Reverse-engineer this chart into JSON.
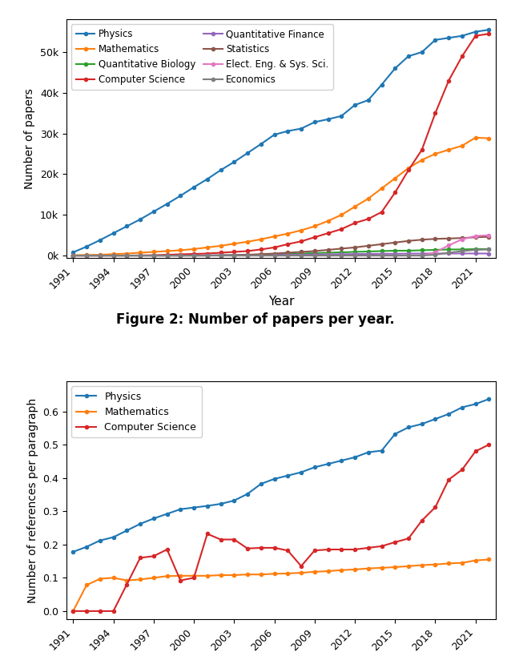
{
  "fig1": {
    "xlabel": "Year",
    "ylabel": "Number of papers",
    "series": {
      "Physics": {
        "color": "#1f77b4",
        "years": [
          1991,
          1992,
          1993,
          1994,
          1995,
          1996,
          1997,
          1998,
          1999,
          2000,
          2001,
          2002,
          2003,
          2004,
          2005,
          2006,
          2007,
          2008,
          2009,
          2010,
          2011,
          2012,
          2013,
          2014,
          2015,
          2016,
          2017,
          2018,
          2019,
          2020,
          2021,
          2022
        ],
        "values": [
          800,
          2200,
          3800,
          5500,
          7200,
          8900,
          10800,
          12700,
          14700,
          16800,
          18800,
          21000,
          23000,
          25200,
          27400,
          29700,
          30600,
          31200,
          32800,
          33500,
          34300,
          37000,
          38200,
          42000,
          46000,
          49000,
          50000,
          53000,
          53500,
          54000,
          55000,
          55500
        ]
      },
      "Mathematics": {
        "color": "#ff7f0e",
        "years": [
          1991,
          1992,
          1993,
          1994,
          1995,
          1996,
          1997,
          1998,
          1999,
          2000,
          2001,
          2002,
          2003,
          2004,
          2005,
          2006,
          2007,
          2008,
          2009,
          2010,
          2011,
          2012,
          2013,
          2014,
          2015,
          2016,
          2017,
          2018,
          2019,
          2020,
          2021,
          2022
        ],
        "values": [
          100,
          150,
          200,
          350,
          500,
          700,
          900,
          1100,
          1300,
          1600,
          2000,
          2400,
          2900,
          3400,
          4000,
          4700,
          5400,
          6200,
          7200,
          8500,
          10000,
          12000,
          14000,
          16500,
          19000,
          21500,
          23500,
          25000,
          26000,
          27000,
          29000,
          28800
        ]
      },
      "Quantitative Biology": {
        "color": "#2ca02c",
        "years": [
          1991,
          1992,
          1993,
          1994,
          1995,
          1996,
          1997,
          1998,
          1999,
          2000,
          2001,
          2002,
          2003,
          2004,
          2005,
          2006,
          2007,
          2008,
          2009,
          2010,
          2011,
          2012,
          2013,
          2014,
          2015,
          2016,
          2017,
          2018,
          2019,
          2020,
          2021,
          2022
        ],
        "values": [
          0,
          0,
          0,
          0,
          0,
          0,
          0,
          0,
          0,
          0,
          0,
          50,
          100,
          150,
          200,
          300,
          400,
          500,
          600,
          700,
          800,
          900,
          1000,
          1100,
          1200,
          1200,
          1300,
          1400,
          1500,
          1500,
          1600,
          1600
        ]
      },
      "Computer Science": {
        "color": "#d62728",
        "years": [
          1991,
          1992,
          1993,
          1994,
          1995,
          1996,
          1997,
          1998,
          1999,
          2000,
          2001,
          2002,
          2003,
          2004,
          2005,
          2006,
          2007,
          2008,
          2009,
          2010,
          2011,
          2012,
          2013,
          2014,
          2015,
          2016,
          2017,
          2018,
          2019,
          2020,
          2021,
          2022
        ],
        "values": [
          0,
          0,
          0,
          0,
          0,
          50,
          100,
          200,
          300,
          400,
          500,
          700,
          900,
          1100,
          1500,
          2000,
          2800,
          3500,
          4500,
          5500,
          6500,
          8000,
          9000,
          10700,
          15500,
          21000,
          26000,
          35000,
          43000,
          49000,
          54000,
          54500
        ]
      },
      "Quantitative Finance": {
        "color": "#9467bd",
        "years": [
          1991,
          1992,
          1993,
          1994,
          1995,
          1996,
          1997,
          1998,
          1999,
          2000,
          2001,
          2002,
          2003,
          2004,
          2005,
          2006,
          2007,
          2008,
          2009,
          2010,
          2011,
          2012,
          2013,
          2014,
          2015,
          2016,
          2017,
          2018,
          2019,
          2020,
          2021,
          2022
        ],
        "values": [
          0,
          0,
          0,
          0,
          0,
          0,
          0,
          0,
          0,
          20,
          50,
          80,
          100,
          130,
          160,
          180,
          200,
          230,
          260,
          300,
          340,
          370,
          400,
          430,
          450,
          480,
          500,
          510,
          510,
          510,
          510,
          500
        ]
      },
      "Statistics": {
        "color": "#8c564b",
        "years": [
          1991,
          1992,
          1993,
          1994,
          1995,
          1996,
          1997,
          1998,
          1999,
          2000,
          2001,
          2002,
          2003,
          2004,
          2005,
          2006,
          2007,
          2008,
          2009,
          2010,
          2011,
          2012,
          2013,
          2014,
          2015,
          2016,
          2017,
          2018,
          2019,
          2020,
          2021,
          2022
        ],
        "values": [
          0,
          0,
          0,
          0,
          0,
          0,
          0,
          0,
          0,
          0,
          0,
          50,
          100,
          200,
          350,
          500,
          700,
          900,
          1100,
          1400,
          1700,
          2000,
          2400,
          2800,
          3200,
          3600,
          3900,
          4100,
          4200,
          4300,
          4500,
          4600
        ]
      },
      "Elect. Eng. & Sys. Sci.": {
        "color": "#e377c2",
        "years": [
          1991,
          1992,
          1993,
          1994,
          1995,
          1996,
          1997,
          1998,
          1999,
          2000,
          2001,
          2002,
          2003,
          2004,
          2005,
          2006,
          2007,
          2008,
          2009,
          2010,
          2011,
          2012,
          2013,
          2014,
          2015,
          2016,
          2017,
          2018,
          2019,
          2020,
          2021,
          2022
        ],
        "values": [
          0,
          0,
          0,
          0,
          0,
          0,
          0,
          0,
          0,
          0,
          0,
          0,
          0,
          0,
          0,
          0,
          0,
          0,
          0,
          0,
          0,
          0,
          0,
          0,
          0,
          0,
          0,
          800,
          2500,
          4000,
          4800,
          5000
        ]
      },
      "Economics": {
        "color": "#7f7f7f",
        "years": [
          1991,
          1992,
          1993,
          1994,
          1995,
          1996,
          1997,
          1998,
          1999,
          2000,
          2001,
          2002,
          2003,
          2004,
          2005,
          2006,
          2007,
          2008,
          2009,
          2010,
          2011,
          2012,
          2013,
          2014,
          2015,
          2016,
          2017,
          2018,
          2019,
          2020,
          2021,
          2022
        ],
        "values": [
          0,
          0,
          0,
          0,
          0,
          0,
          0,
          0,
          0,
          0,
          0,
          0,
          0,
          0,
          0,
          0,
          0,
          0,
          0,
          0,
          0,
          0,
          0,
          0,
          0,
          0,
          0,
          200,
          700,
          1100,
          1400,
          1500
        ]
      }
    },
    "legend_col1": [
      "Physics",
      "Mathematics",
      "Quantitative Biology",
      "Computer Science"
    ],
    "legend_col2": [
      "Quantitative Finance",
      "Statistics",
      "Elect. Eng. & Sys. Sci.",
      "Economics"
    ]
  },
  "caption": "Figure 2: Number of papers per year.",
  "fig2": {
    "xlabel": "Year",
    "ylabel": "Number of references per paragraph",
    "series": {
      "Physics": {
        "color": "#1f77b4",
        "years": [
          1991,
          1992,
          1993,
          1994,
          1995,
          1996,
          1997,
          1998,
          1999,
          2000,
          2001,
          2002,
          2003,
          2004,
          2005,
          2006,
          2007,
          2008,
          2009,
          2010,
          2011,
          2012,
          2013,
          2014,
          2015,
          2016,
          2017,
          2018,
          2019,
          2020,
          2021,
          2022
        ],
        "values": [
          0.178,
          0.193,
          0.212,
          0.222,
          0.242,
          0.262,
          0.278,
          0.292,
          0.306,
          0.311,
          0.316,
          0.322,
          0.332,
          0.352,
          0.382,
          0.397,
          0.407,
          0.417,
          0.432,
          0.442,
          0.452,
          0.462,
          0.477,
          0.482,
          0.532,
          0.552,
          0.562,
          0.577,
          0.592,
          0.612,
          0.622,
          0.637
        ]
      },
      "Mathematics": {
        "color": "#ff7f0e",
        "years": [
          1991,
          1992,
          1993,
          1994,
          1995,
          1996,
          1997,
          1998,
          1999,
          2000,
          2001,
          2002,
          2003,
          2004,
          2005,
          2006,
          2007,
          2008,
          2009,
          2010,
          2011,
          2012,
          2013,
          2014,
          2015,
          2016,
          2017,
          2018,
          2019,
          2020,
          2021,
          2022
        ],
        "values": [
          0.0,
          0.078,
          0.097,
          0.1,
          0.092,
          0.095,
          0.1,
          0.105,
          0.106,
          0.106,
          0.106,
          0.108,
          0.108,
          0.11,
          0.11,
          0.112,
          0.113,
          0.115,
          0.118,
          0.12,
          0.123,
          0.125,
          0.128,
          0.13,
          0.132,
          0.135,
          0.138,
          0.14,
          0.143,
          0.145,
          0.152,
          0.155
        ]
      },
      "Computer Science": {
        "color": "#d62728",
        "years": [
          1991,
          1992,
          1993,
          1994,
          1995,
          1996,
          1997,
          1998,
          1999,
          2000,
          2001,
          2002,
          2003,
          2004,
          2005,
          2006,
          2007,
          2008,
          2009,
          2010,
          2011,
          2012,
          2013,
          2014,
          2015,
          2016,
          2017,
          2018,
          2019,
          2020,
          2021,
          2022
        ],
        "values": [
          0.0,
          0.0,
          0.0,
          0.0,
          0.08,
          0.16,
          0.165,
          0.185,
          0.092,
          0.1,
          0.232,
          0.215,
          0.215,
          0.188,
          0.19,
          0.19,
          0.182,
          0.135,
          0.182,
          0.185,
          0.185,
          0.185,
          0.19,
          0.195,
          0.207,
          0.218,
          0.272,
          0.312,
          0.395,
          0.425,
          0.48,
          0.5
        ]
      }
    }
  },
  "xticks": [
    1991,
    1994,
    1997,
    2000,
    2003,
    2006,
    2009,
    2012,
    2015,
    2018,
    2021
  ]
}
